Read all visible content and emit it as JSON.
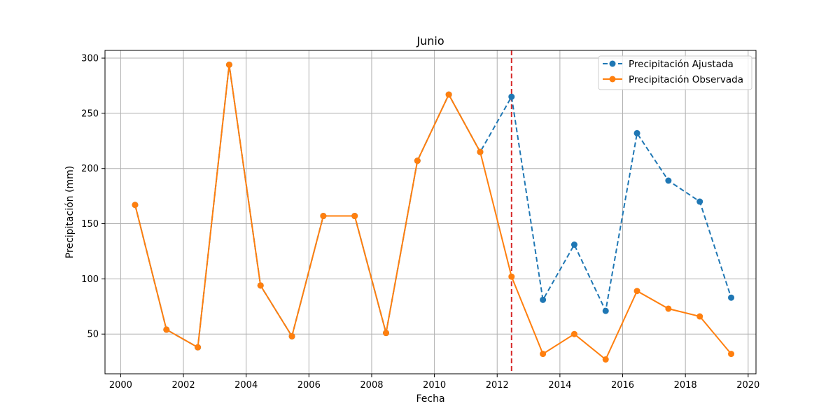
{
  "chart_data": {
    "type": "line",
    "title": "Junio",
    "xlabel": "Fecha",
    "ylabel": "Precipitación (mm)",
    "xlim": [
      1999.5,
      2020.25
    ],
    "ylim": [
      14,
      307
    ],
    "x_ticks": [
      2000,
      2002,
      2004,
      2006,
      2008,
      2010,
      2012,
      2014,
      2016,
      2018,
      2020
    ],
    "x_tick_labels": [
      "2000",
      "2002",
      "2004",
      "2006",
      "2008",
      "2010",
      "2012",
      "2014",
      "2016",
      "2018",
      "2020"
    ],
    "y_ticks": [
      50,
      100,
      150,
      200,
      250,
      300
    ],
    "y_tick_labels": [
      "50",
      "100",
      "150",
      "200",
      "250",
      "300"
    ],
    "grid": true,
    "legend_position": "top-right",
    "x": [
      "2000-06",
      "2001-06",
      "2002-06",
      "2003-06",
      "2004-06",
      "2005-06",
      "2006-06",
      "2007-06",
      "2008-06",
      "2009-06",
      "2010-06",
      "2011-06",
      "2012-06",
      "2013-06",
      "2014-06",
      "2015-06",
      "2016-06",
      "2017-06",
      "2018-06",
      "2019-06"
    ],
    "series": [
      {
        "name": "Precipitación Ajustada",
        "color": "#1f77b4",
        "line_style": "dashed",
        "marker": "circle",
        "values": [
          167,
          54,
          38,
          294,
          94,
          48,
          157,
          157,
          51,
          207,
          267,
          215,
          265,
          81,
          131,
          71,
          232,
          189,
          170,
          83
        ]
      },
      {
        "name": "Precipitación Observada",
        "color": "#ff7f0e",
        "line_style": "solid",
        "marker": "circle",
        "values": [
          167,
          54,
          38,
          294,
          94,
          48,
          157,
          157,
          51,
          207,
          267,
          215,
          102,
          32,
          50,
          27,
          89,
          73,
          66,
          32
        ]
      }
    ],
    "annotations": [
      {
        "type": "vertical_line",
        "x": "2012-06",
        "color": "#d62728",
        "line_style": "dashed"
      }
    ]
  }
}
